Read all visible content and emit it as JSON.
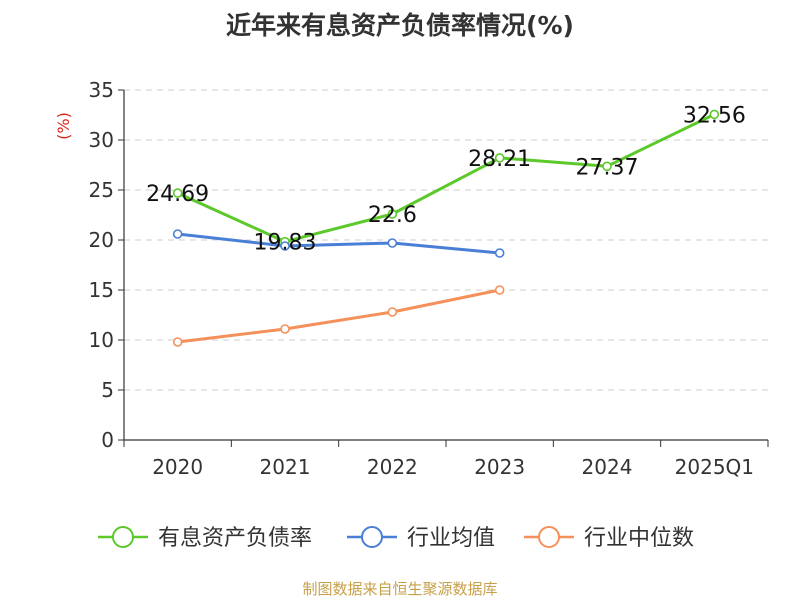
{
  "title": "近年来有息资产负债率情况(%)",
  "source": "制图数据来自恒生聚源数据库",
  "chart_data": {
    "type": "line",
    "title": "近年来有息资产负债率情况(%)",
    "ylabel": "(%)",
    "xlabel": "",
    "ylim": [
      0,
      35
    ],
    "yticks": [
      0,
      5,
      10,
      15,
      20,
      25,
      30,
      35
    ],
    "categories": [
      "2020",
      "2021",
      "2022",
      "2023",
      "2024",
      "2025Q1"
    ],
    "grid": true,
    "legend_position": "bottom",
    "series": [
      {
        "name": "有息资产负债率",
        "color": "#5cc92b",
        "values": [
          24.69,
          19.83,
          22.6,
          28.21,
          27.37,
          32.56
        ],
        "labels": [
          "24.69",
          "19.83",
          "22.6",
          "28.21",
          "27.37",
          "32.56"
        ]
      },
      {
        "name": "行业均值",
        "color": "#4a7fd6",
        "values": [
          20.6,
          19.4,
          19.7,
          18.7,
          null,
          null
        ]
      },
      {
        "name": "行业中位数",
        "color": "#f4905a",
        "values": [
          9.8,
          11.1,
          12.8,
          15.0,
          null,
          null
        ]
      }
    ]
  }
}
